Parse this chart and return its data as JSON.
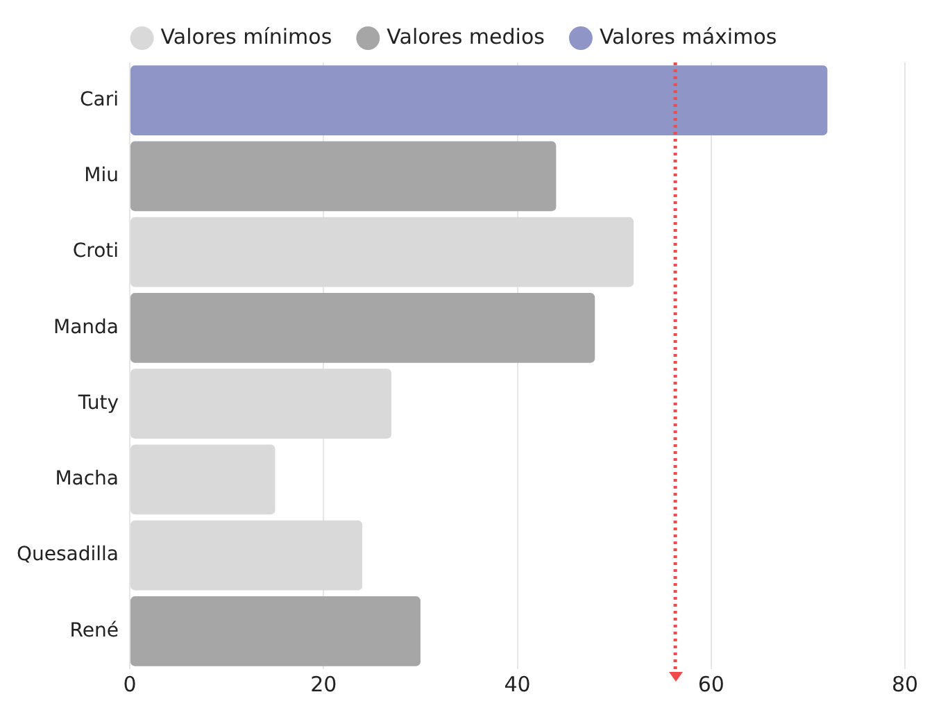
{
  "chart_data": {
    "type": "bar",
    "orientation": "horizontal",
    "stacked": true,
    "categories": [
      "Cari",
      "Miu",
      "Croti",
      "Manda",
      "Tuty",
      "Macha",
      "Quesadilla",
      "René"
    ],
    "series": [
      {
        "name": "Valores mínimos",
        "color": "#d9d9d9",
        "values": [
          null,
          null,
          52,
          null,
          27,
          15,
          24,
          null
        ]
      },
      {
        "name": "Valores medios",
        "color": "#a6a6a6",
        "values": [
          null,
          44,
          null,
          48,
          null,
          null,
          null,
          30
        ]
      },
      {
        "name": "Valores máximos",
        "color": "#8f95c6",
        "values": [
          72,
          null,
          null,
          null,
          null,
          null,
          null,
          null
        ]
      }
    ],
    "xlim": [
      0,
      80
    ],
    "xticks": [
      0,
      20,
      40,
      60,
      80
    ],
    "grid": "x",
    "legend": "top",
    "ref_lines": [
      {
        "axis": "x",
        "value": 56.3,
        "color": "#f04a4a",
        "line_style": "dotted"
      }
    ]
  }
}
